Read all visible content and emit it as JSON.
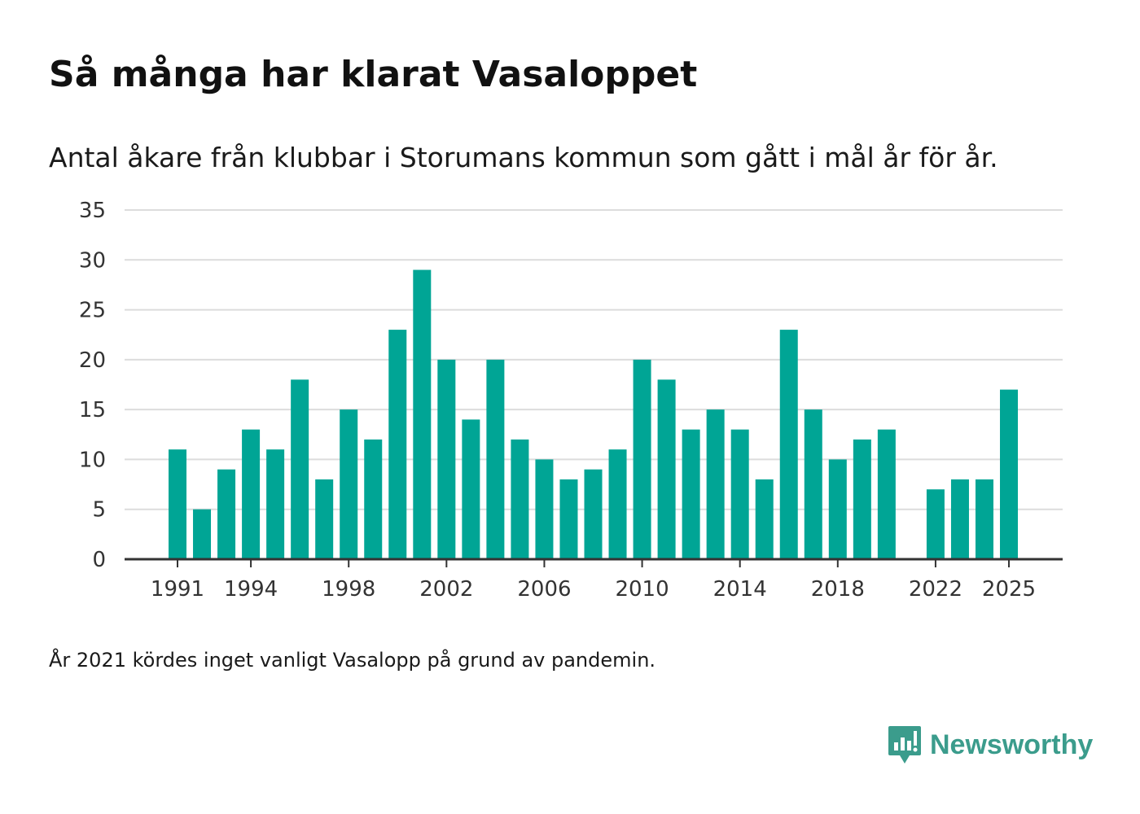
{
  "title": "Så många har klarat Vasaloppet",
  "subtitle": "Antal åkare från klubbar i Storumans kommun som gått i mål år för år.",
  "note": "År 2021 kördes inget vanligt Vasalopp på grund av pandemin.",
  "brand": {
    "name": "Newsworthy",
    "icon": "newsworthy-logo-icon",
    "color": "#3b9c8c"
  },
  "colors": {
    "bar": "#00a595",
    "grid": "#dcdcdc",
    "axis": "#333333"
  },
  "chart_data": {
    "type": "bar",
    "title": "Så många har klarat Vasaloppet",
    "xlabel": "",
    "ylabel": "",
    "ylim": [
      0,
      35
    ],
    "yticks": [
      0,
      5,
      10,
      15,
      20,
      25,
      30,
      35
    ],
    "xticks": [
      "1991",
      "1994",
      "1998",
      "2002",
      "2006",
      "2010",
      "2014",
      "2018",
      "2022",
      "2025"
    ],
    "categories": [
      "1991",
      "1992",
      "1993",
      "1994",
      "1995",
      "1996",
      "1997",
      "1998",
      "1999",
      "2000",
      "2001",
      "2002",
      "2003",
      "2004",
      "2005",
      "2006",
      "2007",
      "2008",
      "2009",
      "2010",
      "2011",
      "2012",
      "2013",
      "2014",
      "2015",
      "2016",
      "2017",
      "2018",
      "2019",
      "2020",
      "2021",
      "2022",
      "2023",
      "2024",
      "2025"
    ],
    "values": [
      11,
      5,
      9,
      13,
      11,
      18,
      8,
      15,
      12,
      23,
      29,
      20,
      14,
      20,
      12,
      10,
      8,
      9,
      11,
      20,
      18,
      13,
      15,
      13,
      8,
      23,
      15,
      10,
      12,
      13,
      null,
      7,
      8,
      8,
      17
    ],
    "grid": true
  }
}
